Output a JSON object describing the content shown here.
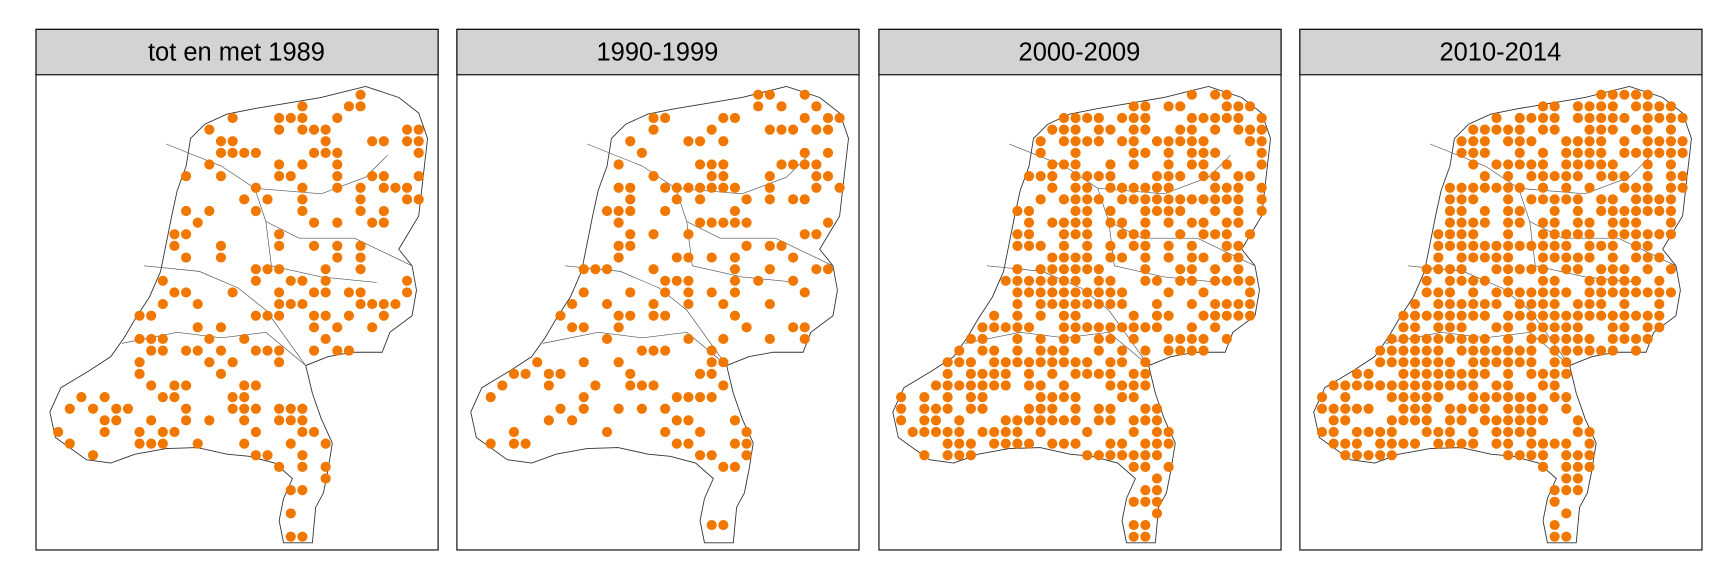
{
  "panels": [
    {
      "title": "tot en met 1989"
    },
    {
      "title": "1990-1999"
    },
    {
      "title": "2000-2009"
    },
    {
      "title": "2010-2014"
    }
  ]
}
